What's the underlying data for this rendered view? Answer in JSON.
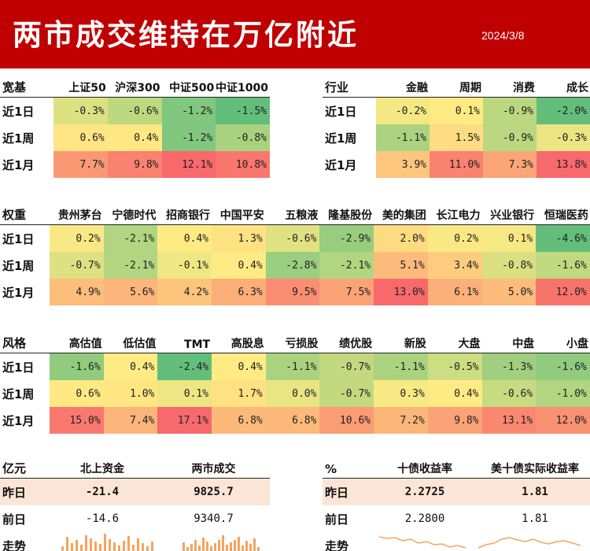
{
  "title": "两市成交维持在万亿附近",
  "date": "2024/3/8",
  "row_labels": [
    "近1日",
    "近1周",
    "近1月"
  ],
  "tables": [
    {
      "id": "broad",
      "header_label": "宽基",
      "columns": [
        "上证50",
        "沪深300",
        "中证500",
        "中证1000"
      ],
      "values": [
        [
          -0.3,
          -0.6,
          -1.2,
          -1.5
        ],
        [
          0.6,
          0.4,
          -1.2,
          -0.8
        ],
        [
          7.7,
          9.8,
          12.1,
          10.8
        ]
      ]
    },
    {
      "id": "industry",
      "header_label": "行业",
      "columns": [
        "金融",
        "周期",
        "消费",
        "成长"
      ],
      "values": [
        [
          -0.2,
          0.1,
          -0.9,
          -2.0
        ],
        [
          -1.1,
          1.5,
          -0.9,
          -0.3
        ],
        [
          3.9,
          11.0,
          7.3,
          13.8
        ]
      ]
    },
    {
      "id": "weight",
      "header_label": "权重",
      "columns": [
        "贵州茅台",
        "宁德时代",
        "招商银行",
        "中国平安",
        "五粮液",
        "隆基股份",
        "美的集团",
        "长江电力",
        "兴业银行",
        "恒瑞医药"
      ],
      "values": [
        [
          0.2,
          -2.1,
          0.4,
          1.3,
          -0.6,
          -2.9,
          2.0,
          0.2,
          0.1,
          -4.6
        ],
        [
          -0.7,
          -2.1,
          -0.1,
          0.4,
          -2.8,
          -2.1,
          5.1,
          3.4,
          -0.8,
          -1.6
        ],
        [
          4.9,
          5.6,
          4.2,
          6.3,
          9.5,
          7.5,
          13.0,
          6.1,
          5.0,
          12.0
        ]
      ]
    },
    {
      "id": "style",
      "header_label": "风格",
      "columns": [
        "高估值",
        "低估值",
        "TMT",
        "高股息",
        "亏损股",
        "绩优股",
        "新股",
        "大盘",
        "中盘",
        "小盘"
      ],
      "values": [
        [
          -1.6,
          0.4,
          -2.4,
          0.4,
          -1.1,
          -0.7,
          -1.1,
          -0.5,
          -1.3,
          -1.6
        ],
        [
          0.6,
          1.0,
          0.1,
          1.7,
          0.0,
          -0.7,
          0.3,
          0.4,
          -0.6,
          -1.0
        ],
        [
          15.0,
          7.4,
          17.1,
          6.8,
          6.8,
          10.6,
          7.2,
          9.8,
          13.1,
          12.0
        ]
      ]
    }
  ],
  "funds": {
    "unit": "亿元",
    "columns": [
      "北上资金",
      "两市成交"
    ],
    "rows": [
      {
        "label": "昨日",
        "values": [
          "-21.4",
          "9825.7"
        ]
      },
      {
        "label": "前日",
        "values": [
          "-14.6",
          "9340.7"
        ]
      },
      {
        "label": "走势",
        "values": [
          "",
          ""
        ]
      }
    ]
  },
  "yields": {
    "unit": "%",
    "columns": [
      "十债收益率",
      "美十债实际收益率"
    ],
    "rows": [
      {
        "label": "昨日",
        "values": [
          "2.2725",
          "1.81"
        ]
      },
      {
        "label": "前日",
        "values": [
          "2.2800",
          "1.81"
        ]
      },
      {
        "label": "走势",
        "values": [
          "",
          ""
        ]
      }
    ]
  },
  "colors": {
    "header_bg": "#c00000",
    "green": "#63be7b",
    "yellow": "#ffeb84",
    "red": "#f8696b",
    "highlight": "#fbe5d6",
    "spark": "#f4a460"
  },
  "chart_data": [
    {
      "type": "table",
      "title": "宽基",
      "categories": [
        "上证50",
        "沪深300",
        "中证500",
        "中证1000"
      ],
      "series": [
        {
          "name": "近1日",
          "values": [
            -0.3,
            -0.6,
            -1.2,
            -1.5
          ]
        },
        {
          "name": "近1周",
          "values": [
            0.6,
            0.4,
            -1.2,
            -0.8
          ]
        },
        {
          "name": "近1月",
          "values": [
            7.7,
            9.8,
            12.1,
            10.8
          ]
        }
      ]
    },
    {
      "type": "table",
      "title": "行业",
      "categories": [
        "金融",
        "周期",
        "消费",
        "成长"
      ],
      "series": [
        {
          "name": "近1日",
          "values": [
            -0.2,
            0.1,
            -0.9,
            -2.0
          ]
        },
        {
          "name": "近1周",
          "values": [
            -1.1,
            1.5,
            -0.9,
            -0.3
          ]
        },
        {
          "name": "近1月",
          "values": [
            3.9,
            11.0,
            7.3,
            13.8
          ]
        }
      ]
    },
    {
      "type": "table",
      "title": "权重",
      "categories": [
        "贵州茅台",
        "宁德时代",
        "招商银行",
        "中国平安",
        "五粮液",
        "隆基股份",
        "美的集团",
        "长江电力",
        "兴业银行",
        "恒瑞医药"
      ],
      "series": [
        {
          "name": "近1日",
          "values": [
            0.2,
            -2.1,
            0.4,
            1.3,
            -0.6,
            -2.9,
            2.0,
            0.2,
            0.1,
            -4.6
          ]
        },
        {
          "name": "近1周",
          "values": [
            -0.7,
            -2.1,
            -0.1,
            0.4,
            -2.8,
            -2.1,
            5.1,
            3.4,
            -0.8,
            -1.6
          ]
        },
        {
          "name": "近1月",
          "values": [
            4.9,
            5.6,
            4.2,
            6.3,
            9.5,
            7.5,
            13.0,
            6.1,
            5.0,
            12.0
          ]
        }
      ]
    },
    {
      "type": "table",
      "title": "风格",
      "categories": [
        "高估值",
        "低估值",
        "TMT",
        "高股息",
        "亏损股",
        "绩优股",
        "新股",
        "大盘",
        "中盘",
        "小盘"
      ],
      "series": [
        {
          "name": "近1日",
          "values": [
            -1.6,
            0.4,
            -2.4,
            0.4,
            -1.1,
            -0.7,
            -1.1,
            -0.5,
            -1.3,
            -1.6
          ]
        },
        {
          "name": "近1周",
          "values": [
            0.6,
            1.0,
            0.1,
            1.7,
            0.0,
            -0.7,
            0.3,
            0.4,
            -0.6,
            -1.0
          ]
        },
        {
          "name": "近1月",
          "values": [
            15.0,
            7.4,
            17.1,
            6.8,
            6.8,
            10.6,
            7.2,
            9.8,
            13.1,
            12.0
          ]
        }
      ]
    }
  ]
}
